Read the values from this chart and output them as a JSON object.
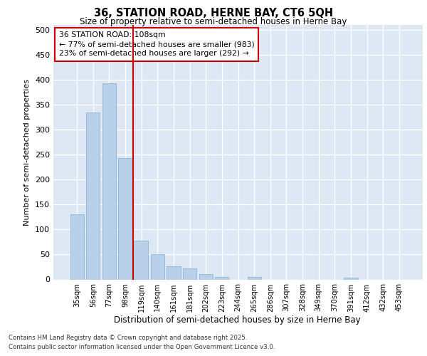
{
  "title1": "36, STATION ROAD, HERNE BAY, CT6 5QH",
  "title2": "Size of property relative to semi-detached houses in Herne Bay",
  "xlabel": "Distribution of semi-detached houses by size in Herne Bay",
  "ylabel": "Number of semi-detached properties",
  "categories": [
    "35sqm",
    "56sqm",
    "77sqm",
    "98sqm",
    "119sqm",
    "140sqm",
    "161sqm",
    "181sqm",
    "202sqm",
    "223sqm",
    "244sqm",
    "265sqm",
    "286sqm",
    "307sqm",
    "328sqm",
    "349sqm",
    "370sqm",
    "391sqm",
    "412sqm",
    "432sqm",
    "453sqm"
  ],
  "values": [
    130,
    335,
    393,
    243,
    78,
    50,
    27,
    22,
    10,
    5,
    0,
    5,
    0,
    0,
    0,
    0,
    0,
    3,
    0,
    0,
    0
  ],
  "bar_color": "#b8d0ea",
  "bar_edgecolor": "#7aaed4",
  "vline_x": 3.5,
  "vline_color": "#cc0000",
  "annotation_title": "36 STATION ROAD: 108sqm",
  "annotation_line1": "← 77% of semi-detached houses are smaller (983)",
  "annotation_line2": "23% of semi-detached houses are larger (292) →",
  "annotation_box_color": "#cc0000",
  "bg_color": "#dde8f4",
  "footnote1": "Contains HM Land Registry data © Crown copyright and database right 2025.",
  "footnote2": "Contains public sector information licensed under the Open Government Licence v3.0.",
  "ylim": [
    0,
    510
  ],
  "yticks": [
    0,
    50,
    100,
    150,
    200,
    250,
    300,
    350,
    400,
    450,
    500
  ]
}
